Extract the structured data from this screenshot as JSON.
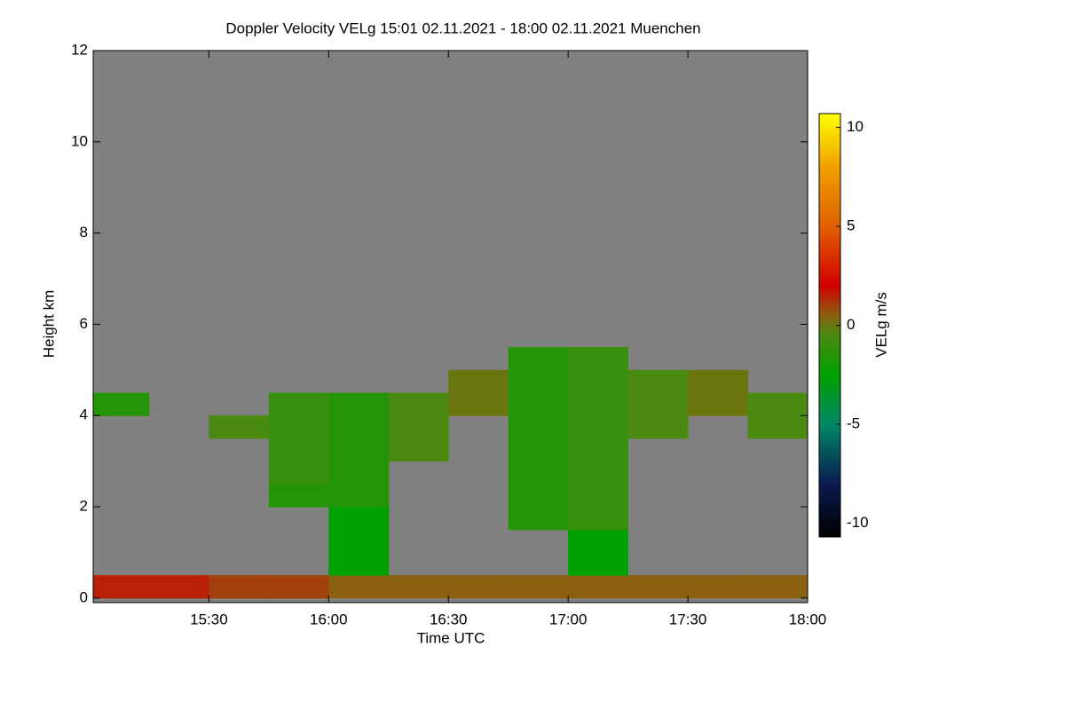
{
  "chart_data": {
    "type": "heatmap",
    "title": "Doppler Velocity VELg   15:01 02.11.2021 - 18:00 02.11.2021 Muenchen",
    "x_label": "Time UTC",
    "y_label": "Height km",
    "xlim": [
      15.0167,
      18.0
    ],
    "xticks": [
      {
        "value": 15.5,
        "label": "15:30"
      },
      {
        "value": 16.0,
        "label": "16:00"
      },
      {
        "value": 16.5,
        "label": "16:30"
      },
      {
        "value": 17.0,
        "label": "17:00"
      },
      {
        "value": 17.5,
        "label": "17:30"
      },
      {
        "value": 18.0,
        "label": "18:00"
      }
    ],
    "ylim": [
      -0.1,
      12
    ],
    "yticks": [
      0,
      2,
      4,
      6,
      8,
      10,
      12
    ],
    "background": "#808080",
    "xbins": [
      15.0,
      15.25,
      15.5,
      15.75,
      16.0,
      16.25,
      16.5,
      16.75,
      17.0,
      17.25,
      17.5,
      17.75,
      18.0
    ],
    "ybins": [
      0,
      0.5,
      1.0,
      1.5,
      2.0,
      2.5,
      3.0,
      3.5,
      4.0,
      4.5,
      5.0,
      5.5
    ],
    "z": [
      [
        1.5,
        1.5,
        1.0,
        1.0,
        0.5,
        0.5,
        0.5,
        0.5,
        0.5,
        0.5,
        0.5,
        0.5
      ],
      [
        null,
        null,
        null,
        null,
        -2.5,
        null,
        null,
        null,
        -2.5,
        null,
        null,
        null
      ],
      [
        null,
        null,
        null,
        null,
        -2.5,
        null,
        null,
        null,
        -2.5,
        null,
        null,
        null
      ],
      [
        null,
        null,
        null,
        null,
        -2.5,
        null,
        null,
        -1.5,
        -1.0,
        null,
        null,
        null
      ],
      [
        null,
        null,
        null,
        -1.5,
        -1.5,
        null,
        null,
        -1.5,
        -1.0,
        null,
        null,
        null
      ],
      [
        null,
        null,
        null,
        -1.0,
        -1.5,
        null,
        null,
        -1.5,
        -1.0,
        null,
        null,
        null
      ],
      [
        null,
        null,
        null,
        -1.0,
        -1.5,
        -0.5,
        null,
        -1.5,
        -1.0,
        null,
        null,
        null
      ],
      [
        null,
        null,
        -0.5,
        -1.0,
        -1.5,
        -0.5,
        null,
        -1.5,
        -1.0,
        -0.5,
        null,
        -0.5
      ],
      [
        -1.5,
        null,
        null,
        -1.0,
        -1.5,
        -0.5,
        0.0,
        -1.5,
        -1.0,
        -0.5,
        0.0,
        -0.5
      ],
      [
        null,
        null,
        null,
        null,
        null,
        null,
        0.0,
        -1.5,
        -1.0,
        -0.5,
        0.0,
        null
      ],
      [
        null,
        null,
        null,
        null,
        null,
        null,
        null,
        -1.5,
        -1.0,
        null,
        null,
        null
      ]
    ],
    "colorbar": {
      "label": "VELg m/s",
      "lim": [
        -10.7,
        10.7
      ],
      "ticks": [
        -10,
        -5,
        0,
        5,
        10
      ],
      "stops": [
        {
          "value": -10.7,
          "color": "#000000"
        },
        {
          "value": -8,
          "color": "#0a1a50"
        },
        {
          "value": -5,
          "color": "#008866"
        },
        {
          "value": -2.5,
          "color": "#00a000"
        },
        {
          "value": -0.5,
          "color": "#4a8a10"
        },
        {
          "value": 0.5,
          "color": "#8a6010"
        },
        {
          "value": 2,
          "color": "#d00000"
        },
        {
          "value": 5,
          "color": "#e06000"
        },
        {
          "value": 8,
          "color": "#f0a000"
        },
        {
          "value": 10.7,
          "color": "#ffff00"
        }
      ]
    }
  }
}
